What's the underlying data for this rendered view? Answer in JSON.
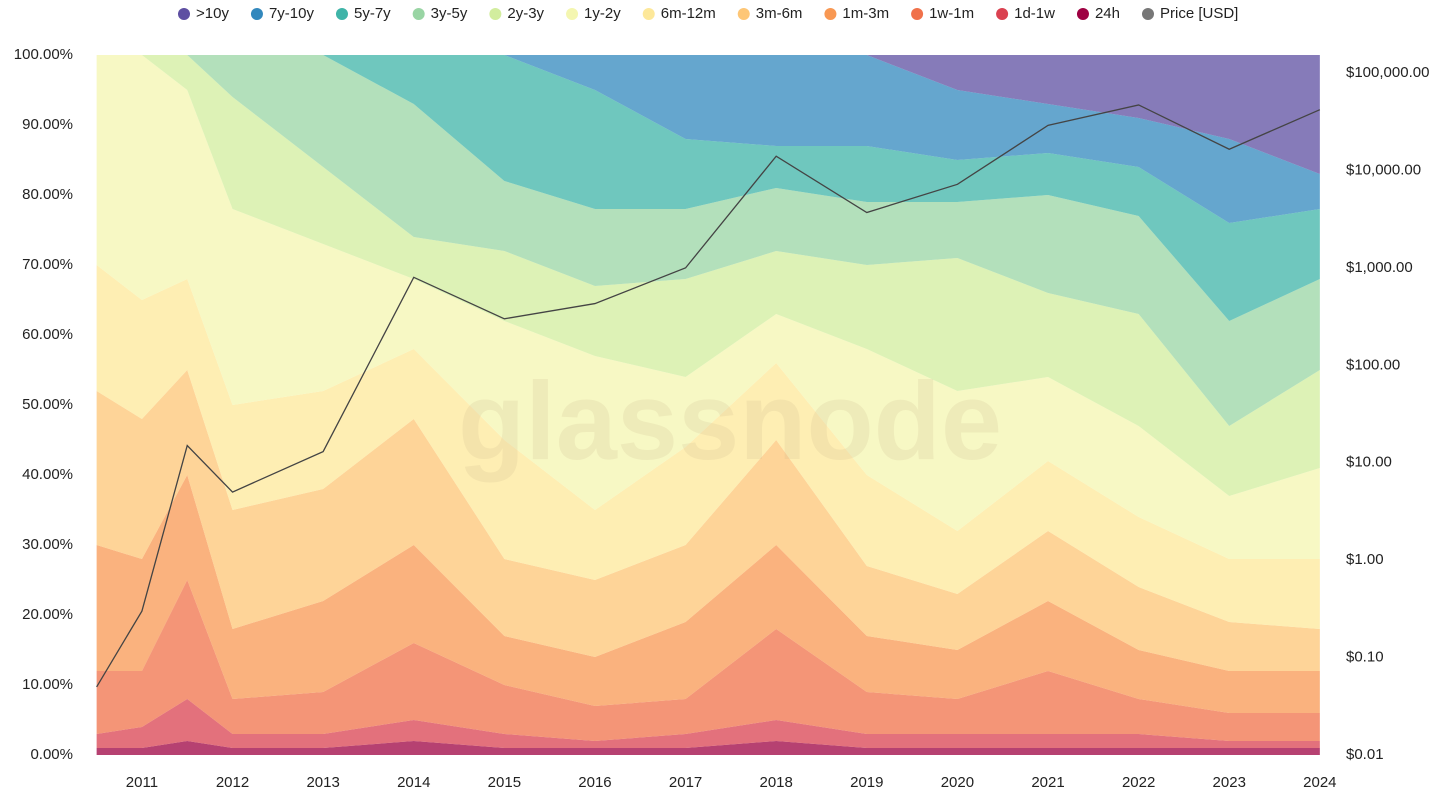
{
  "chart_data": {
    "type": "stacked-area",
    "watermark": "glassnode",
    "x": [
      2010.5,
      2011,
      2011.5,
      2012,
      2013,
      2014,
      2015,
      2016,
      2017,
      2018,
      2019,
      2020,
      2021,
      2022,
      2023,
      2024
    ],
    "xlim": [
      2010.46,
      2024.09
    ],
    "xticks": [
      2011,
      2012,
      2013,
      2014,
      2015,
      2016,
      2017,
      2018,
      2019,
      2020,
      2021,
      2022,
      2023,
      2024
    ],
    "ylim": [
      0,
      100
    ],
    "yticks": [
      {
        "value": 0,
        "label": "0.00%"
      },
      {
        "value": 10,
        "label": "10.00%"
      },
      {
        "value": 20,
        "label": "20.00%"
      },
      {
        "value": 30,
        "label": "30.00%"
      },
      {
        "value": 40,
        "label": "40.00%"
      },
      {
        "value": 50,
        "label": "50.00%"
      },
      {
        "value": 60,
        "label": "60.00%"
      },
      {
        "value": 70,
        "label": "70.00%"
      },
      {
        "value": 80,
        "label": "80.00%"
      },
      {
        "value": 90,
        "label": "90.00%"
      },
      {
        "value": 100,
        "label": "100.00%"
      }
    ],
    "y2lim": [
      0.01,
      153000
    ],
    "y2scale": "log",
    "y2ticks": [
      {
        "value": 0.01,
        "label": "$0.01"
      },
      {
        "value": 0.1,
        "label": "$0.10"
      },
      {
        "value": 1,
        "label": "$1.00"
      },
      {
        "value": 10,
        "label": "$10.00"
      },
      {
        "value": 100,
        "label": "$100.00"
      },
      {
        "value": 1000,
        "label": "$1,000.00"
      },
      {
        "value": 10000,
        "label": "$10,000.00"
      },
      {
        "value": 100000,
        "label": "$100,000.00"
      }
    ],
    "legend": "top",
    "series": [
      {
        "name": ">10y",
        "color": "#5e4fa2",
        "values": [
          0,
          0,
          0,
          0,
          0,
          0,
          0,
          0,
          0,
          0,
          0,
          5,
          7,
          9,
          12,
          17
        ]
      },
      {
        "name": "7y-10y",
        "color": "#3288bd",
        "values": [
          0,
          0,
          0,
          0,
          0,
          0,
          0,
          5,
          12,
          13,
          13,
          10,
          7,
          7,
          12,
          5
        ]
      },
      {
        "name": "5y-7y",
        "color": "#3fb4a8",
        "values": [
          0,
          0,
          0,
          0,
          0,
          7,
          18,
          17,
          10,
          6,
          8,
          6,
          6,
          7,
          14,
          10
        ]
      },
      {
        "name": "3y-5y",
        "color": "#99d5a4",
        "values": [
          0,
          0,
          0,
          6,
          16,
          19,
          10,
          11,
          10,
          9,
          9,
          8,
          14,
          14,
          15,
          13
        ]
      },
      {
        "name": "2y-3y",
        "color": "#d2ed9e",
        "values": [
          0,
          0,
          5,
          16,
          11,
          6,
          10,
          10,
          14,
          9,
          12,
          19,
          12,
          16,
          10,
          14
        ]
      },
      {
        "name": "1y-2y",
        "color": "#f4f6b0",
        "values": [
          30,
          35,
          27,
          28,
          21,
          10,
          17,
          22,
          10,
          7,
          18,
          20,
          12,
          13,
          9,
          13
        ]
      },
      {
        "name": "6m-12m",
        "color": "#fde89a",
        "values": [
          18,
          17,
          13,
          15,
          14,
          10,
          17,
          10,
          14,
          11,
          13,
          9,
          10,
          10,
          9,
          10
        ]
      },
      {
        "name": "3m-6m",
        "color": "#fdc676",
        "values": [
          22,
          20,
          15,
          17,
          16,
          18,
          11,
          11,
          11,
          15,
          10,
          8,
          10,
          9,
          7,
          6
        ]
      },
      {
        "name": "1m-3m",
        "color": "#f89853",
        "values": [
          18,
          16,
          15,
          10,
          13,
          14,
          7,
          7,
          11,
          12,
          8,
          7,
          10,
          7,
          6,
          6
        ]
      },
      {
        "name": "1w-1m",
        "color": "#f0714a",
        "values": [
          9,
          8,
          17,
          5,
          6,
          11,
          7,
          5,
          5,
          13,
          6,
          5,
          9,
          5,
          4,
          4
        ]
      },
      {
        "name": "1d-1w",
        "color": "#da4150",
        "values": [
          2,
          3,
          6,
          2,
          2,
          3,
          2,
          1,
          2,
          3,
          2,
          2,
          2,
          2,
          1,
          1
        ]
      },
      {
        "name": "24h",
        "color": "#9e0142",
        "values": [
          1,
          1,
          2,
          1,
          1,
          2,
          1,
          1,
          1,
          2,
          1,
          1,
          1,
          1,
          1,
          1
        ]
      },
      {
        "name": "Price [USD]",
        "color": "#777777",
        "axis": "y2",
        "values": [
          0.05,
          0.3,
          15,
          5,
          13,
          800,
          300,
          430,
          1000,
          14000,
          3700,
          7200,
          29000,
          47000,
          16500,
          42000
        ]
      }
    ]
  }
}
